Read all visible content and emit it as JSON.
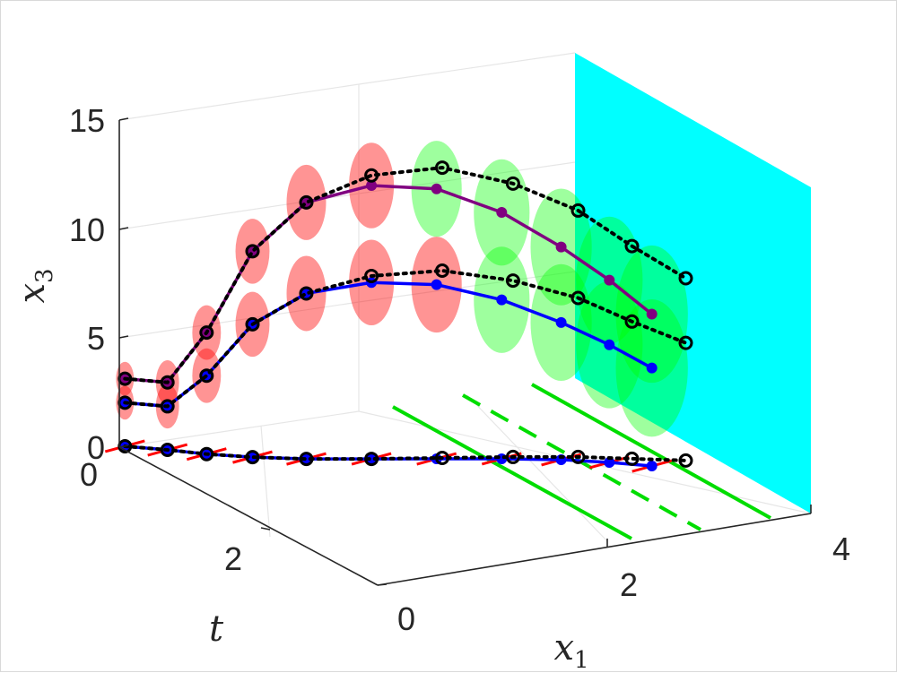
{
  "chart_data": {
    "type": "scatter",
    "axes": {
      "x1": {
        "label": "x",
        "subscript": "1",
        "ticks": [
          "0",
          "2",
          "4"
        ],
        "range": [
          0,
          4
        ]
      },
      "t": {
        "label": "t",
        "ticks": [
          "0",
          "2"
        ],
        "range": [
          0,
          3
        ]
      },
      "x3": {
        "label": "x",
        "subscript": "3",
        "ticks": [
          "0",
          "5",
          "10",
          "15"
        ],
        "range": [
          0,
          15
        ]
      }
    },
    "grid": true,
    "colors": {
      "red_ellipse": "#ff0000",
      "green_ellipse": "#00ff00",
      "cyan_plane": "#00ffff",
      "blue_line": "#0000ff",
      "purple_line": "#800080",
      "black_dotted": "#000000",
      "green_lines": "#00dd00"
    },
    "series": [
      {
        "style": "blue solid line with filled dots",
        "x1": [
          0.05,
          0.35,
          0.62,
          0.95,
          1.35,
          1.85,
          2.35,
          2.85,
          3.3,
          3.65,
          3.95
        ],
        "t": [
          0,
          0.2,
          0.4,
          0.6,
          0.8,
          1.0,
          1.2,
          1.4,
          1.6,
          1.8,
          2.0
        ],
        "x3": [
          2.0,
          2.0,
          3.6,
          6.1,
          7.6,
          8.1,
          8.0,
          7.3,
          6.3,
          5.4,
          4.5
        ]
      },
      {
        "style": "black dotted line with open circles",
        "x1": [
          0.05,
          0.35,
          0.62,
          0.95,
          1.35,
          1.85,
          2.4,
          2.95,
          3.45,
          3.85,
          4.25
        ],
        "t": [
          0,
          0.2,
          0.4,
          0.6,
          0.8,
          1.0,
          1.2,
          1.4,
          1.6,
          1.8,
          2.0
        ],
        "x3": [
          2.0,
          2.0,
          3.6,
          6.1,
          7.6,
          8.4,
          8.6,
          8.1,
          7.3,
          6.3,
          5.4
        ]
      }
    ]
  }
}
